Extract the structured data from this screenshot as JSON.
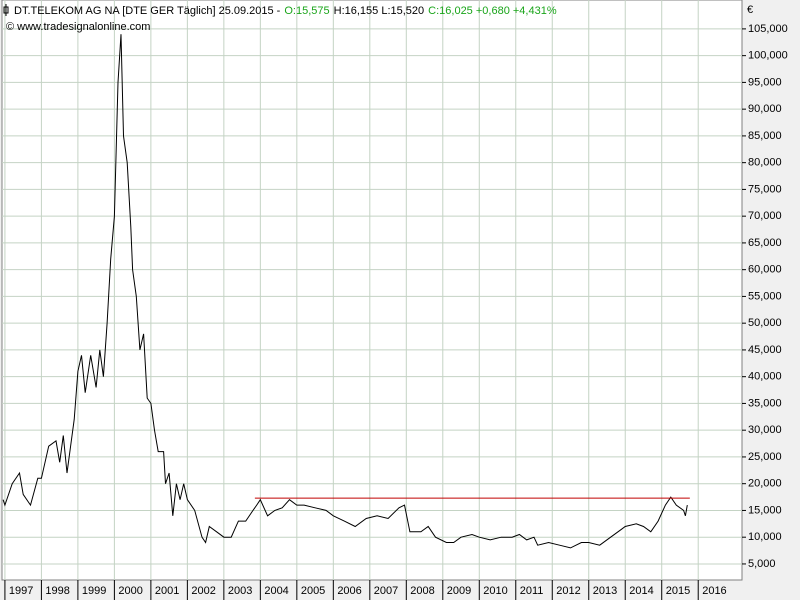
{
  "chart_data": {
    "type": "line",
    "title": "DT.TELEKOM AG NA [DTE GER  Täglich] 25.09.2015 -",
    "quote_open": "O:15,575",
    "quote_high_low": "H:16,155 L:15,520",
    "quote_close": "C:16,025 +0,680 +4,431%",
    "quote_color": "#1aa51a",
    "subtitle": "© www.tradesignalonline.com",
    "y_label": "€",
    "grid": true,
    "grid_color": "#c4d3c4",
    "xlim": [
      1996.92,
      2017.2
    ],
    "xticks": [
      1997,
      1998,
      1999,
      2000,
      2001,
      2002,
      2003,
      2004,
      2005,
      2006,
      2007,
      2008,
      2009,
      2010,
      2011,
      2012,
      2013,
      2014,
      2015,
      2016
    ],
    "ylim": [
      2.0,
      110.4
    ],
    "yticks": [
      {
        "value": 5,
        "label": "5,000"
      },
      {
        "value": 10,
        "label": "10,000"
      },
      {
        "value": 15,
        "label": "15,000"
      },
      {
        "value": 20,
        "label": "20,000"
      },
      {
        "value": 25,
        "label": "25,000"
      },
      {
        "value": 30,
        "label": "30,000"
      },
      {
        "value": 35,
        "label": "35,000"
      },
      {
        "value": 40,
        "label": "40,000"
      },
      {
        "value": 45,
        "label": "45,000"
      },
      {
        "value": 50,
        "label": "50,000"
      },
      {
        "value": 55,
        "label": "55,000"
      },
      {
        "value": 60,
        "label": "60,000"
      },
      {
        "value": 65,
        "label": "65,000"
      },
      {
        "value": 70,
        "label": "70,000"
      },
      {
        "value": 75,
        "label": "75,000"
      },
      {
        "value": 80,
        "label": "80,000"
      },
      {
        "value": 85,
        "label": "85,000"
      },
      {
        "value": 90,
        "label": "90,000"
      },
      {
        "value": 95,
        "label": "95,000"
      },
      {
        "value": 100,
        "label": "100,000"
      },
      {
        "value": 105,
        "label": "105,000"
      }
    ],
    "series": [
      {
        "color": "#000000",
        "x": [
          1996.95,
          1997.0,
          1997.2,
          1997.4,
          1997.5,
          1997.7,
          1997.9,
          1998.0,
          1998.2,
          1998.4,
          1998.5,
          1998.6,
          1998.7,
          1998.8,
          1998.9,
          1999.0,
          1999.1,
          1999.2,
          1999.35,
          1999.5,
          1999.6,
          1999.7,
          1999.8,
          1999.9,
          2000.0,
          2000.1,
          2000.18,
          2000.25,
          2000.35,
          2000.45,
          2000.5,
          2000.6,
          2000.7,
          2000.8,
          2000.9,
          2001.0,
          2001.1,
          2001.2,
          2001.35,
          2001.4,
          2001.5,
          2001.6,
          2001.7,
          2001.8,
          2001.9,
          2002.0,
          2002.2,
          2002.4,
          2002.5,
          2002.6,
          2002.8,
          2003.0,
          2003.2,
          2003.4,
          2003.6,
          2003.8,
          2003.9,
          2004.0,
          2004.2,
          2004.4,
          2004.6,
          2004.8,
          2005.0,
          2005.2,
          2005.5,
          2005.8,
          2006.0,
          2006.3,
          2006.6,
          2006.9,
          2007.2,
          2007.5,
          2007.8,
          2007.95,
          2008.1,
          2008.4,
          2008.6,
          2008.8,
          2009.1,
          2009.3,
          2009.5,
          2009.8,
          2010.0,
          2010.3,
          2010.6,
          2010.9,
          2011.1,
          2011.3,
          2011.5,
          2011.6,
          2011.9,
          2012.2,
          2012.5,
          2012.8,
          2013.0,
          2013.3,
          2013.6,
          2013.9,
          2014.0,
          2014.3,
          2014.5,
          2014.7,
          2014.9,
          2015.1,
          2015.25,
          2015.4,
          2015.6,
          2015.65,
          2015.7
        ],
        "values": [
          17,
          16,
          20,
          22,
          18,
          16,
          21,
          21,
          27,
          28,
          24,
          29,
          22,
          27,
          32,
          41,
          44,
          37,
          44,
          38,
          45,
          40,
          50,
          62,
          70,
          95,
          104,
          85,
          80,
          68,
          60,
          55,
          45,
          48,
          36,
          35,
          30,
          26,
          26,
          20,
          22,
          14,
          20,
          17,
          20,
          17,
          15,
          10,
          9,
          12,
          11,
          10,
          10,
          13,
          13,
          15,
          16,
          17,
          14,
          15,
          15.5,
          17,
          16,
          16,
          15.5,
          15,
          14,
          13,
          12,
          13.5,
          14,
          13.5,
          15.5,
          16,
          11,
          11,
          12,
          10,
          9,
          9,
          10,
          10.5,
          10,
          9.5,
          10,
          10,
          10.5,
          9.5,
          10,
          8.5,
          9,
          8.5,
          8,
          9,
          9,
          8.5,
          10,
          11.5,
          12,
          12.5,
          12,
          11,
          13,
          16,
          17.5,
          16,
          15,
          14,
          16
        ]
      }
    ],
    "resistance": {
      "x": [
        2003.85,
        2015.77
      ],
      "value": 17.3,
      "color": "#c00000"
    }
  }
}
